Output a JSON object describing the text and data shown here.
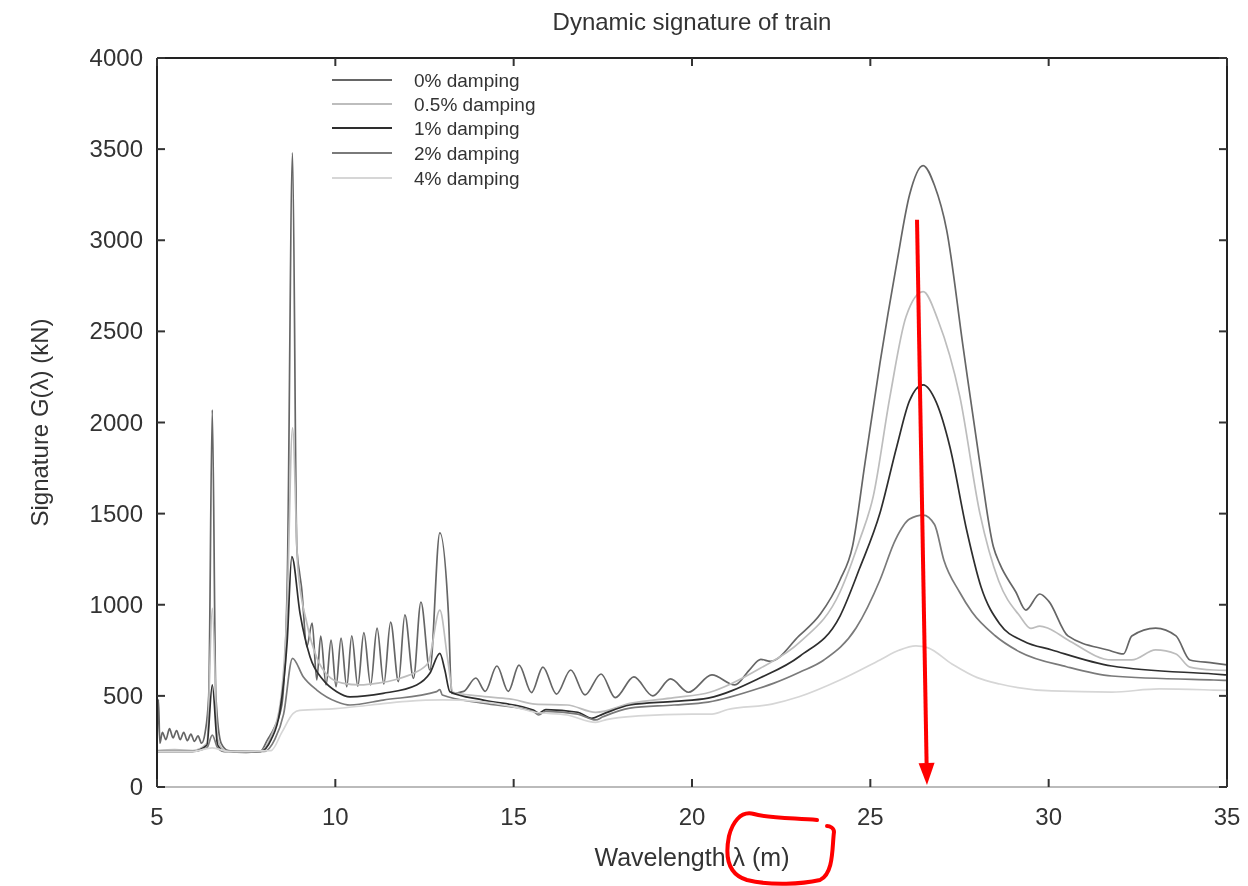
{
  "chart_data": {
    "type": "line",
    "title": "Dynamic signature of train",
    "xlabel": "Wavelength λ (m)",
    "ylabel": "Signature G(λ) (kN)",
    "xlim": [
      5,
      35
    ],
    "xticks": [
      5,
      10,
      15,
      20,
      25,
      30,
      35
    ],
    "ylim": [
      0,
      4000
    ],
    "yticks": [
      0,
      500,
      1000,
      1500,
      2000,
      2500,
      3000,
      3500,
      4000
    ],
    "legend": "top left",
    "series": [
      {
        "name": "0% damping",
        "color": "#666666",
        "x": [
          5.0,
          5.04,
          5.08,
          5.15,
          5.25,
          5.35,
          5.45,
          5.55,
          5.65,
          5.75,
          5.85,
          5.95,
          6.05,
          6.15,
          6.25,
          6.35,
          6.45,
          6.55,
          6.65,
          6.8,
          7.0,
          7.5,
          7.9,
          8.1,
          8.3,
          8.5,
          8.65,
          8.8,
          8.92,
          9.0,
          9.05,
          9.2,
          9.35,
          9.48,
          9.59,
          9.74,
          9.88,
          10.02,
          10.16,
          10.32,
          10.46,
          10.63,
          10.8,
          10.99,
          11.17,
          11.36,
          11.55,
          11.77,
          11.95,
          12.19,
          12.4,
          12.65,
          12.93,
          13.17,
          13.26,
          13.6,
          13.94,
          14.2,
          14.53,
          14.85,
          15.15,
          15.5,
          15.82,
          16.2,
          16.6,
          17.0,
          17.45,
          17.85,
          18.37,
          18.9,
          19.4,
          19.9,
          20.56,
          21.2,
          21.6,
          21.93,
          22.2,
          23.0,
          23.6,
          24.15,
          24.5,
          24.85,
          25.27,
          25.74,
          26.1,
          26.48,
          26.8,
          27.14,
          27.6,
          28.07,
          28.45,
          28.63,
          29.08,
          29.36,
          29.75,
          30.0,
          30.54,
          31.66,
          32.1,
          32.33,
          33.0,
          33.57,
          33.96,
          34.63,
          35.0
        ],
        "values": [
          220,
          480,
          240,
          300,
          260,
          320,
          270,
          310,
          260,
          300,
          255,
          290,
          250,
          280,
          240,
          300,
          500,
          2070,
          500,
          240,
          200,
          190,
          195,
          260,
          330,
          450,
          1100,
          3480,
          1320,
          1170,
          1100,
          770,
          900,
          587,
          828,
          560,
          806,
          550,
          817,
          550,
          830,
          554,
          847,
          560,
          872,
          565,
          905,
          578,
          944,
          596,
          1015,
          642,
          1394,
          953,
          514,
          525,
          598,
          525,
          664,
          525,
          669,
          518,
          658,
          510,
          642,
          505,
          620,
          490,
          604,
          500,
          593,
          520,
          615,
          560,
          640,
          700,
          690,
          829,
          949,
          1136,
          1320,
          1777,
          2326,
          2873,
          3250,
          3410,
          3300,
          3056,
          2416,
          1777,
          1318,
          1224,
          1070,
          971,
          1059,
          1020,
          829,
          752,
          730,
          829,
          872,
          829,
          697,
          680,
          670
        ]
      },
      {
        "name": "0.5% damping",
        "color": "#bdbdbd",
        "x": [
          5.0,
          5.5,
          6.0,
          6.4,
          6.55,
          6.7,
          6.9,
          7.5,
          7.9,
          8.2,
          8.45,
          8.65,
          8.8,
          8.95,
          9.2,
          9.5,
          9.8,
          10.2,
          10.7,
          11.2,
          11.7,
          12.2,
          12.6,
          12.93,
          13.15,
          13.3,
          14.0,
          15.0,
          15.6,
          16.5,
          17.3,
          18.3,
          19.5,
          20.5,
          21.9,
          23.03,
          24.15,
          24.7,
          25.08,
          25.55,
          26.0,
          26.48,
          26.9,
          27.51,
          28.07,
          28.6,
          29.19,
          29.5,
          29.75,
          30.0,
          30.54,
          31.77,
          32.33,
          33.0,
          33.57,
          33.96,
          34.63,
          35.0
        ],
        "values": [
          200,
          205,
          200,
          240,
          980,
          260,
          200,
          190,
          195,
          280,
          450,
          1000,
          1970,
          1200,
          900,
          700,
          610,
          570,
          560,
          570,
          590,
          625,
          680,
          970,
          700,
          520,
          500,
          480,
          455,
          450,
          410,
          460,
          490,
          520,
          650,
          796,
          1070,
          1355,
          1593,
          2142,
          2580,
          2718,
          2560,
          2142,
          1503,
          1130,
          938,
          870,
          883,
          870,
          807,
          697,
          697,
          752,
          730,
          658,
          642,
          640
        ]
      },
      {
        "name": "1% damping",
        "color": "#2e2e2e",
        "x": [
          5.0,
          6.0,
          6.4,
          6.55,
          6.7,
          6.9,
          7.9,
          8.2,
          8.45,
          8.65,
          8.78,
          9.01,
          9.29,
          9.66,
          10.04,
          10.41,
          11.34,
          12.28,
          12.65,
          12.93,
          13.07,
          13.21,
          14.15,
          15.55,
          15.7,
          15.9,
          16.8,
          17.19,
          17.5,
          18.26,
          19.5,
          20.45,
          21.9,
          23.03,
          24.15,
          24.7,
          25.27,
          25.74,
          26.1,
          26.48,
          26.85,
          27.23,
          27.7,
          28.1,
          28.63,
          29.3,
          30.09,
          31.77,
          34.63,
          35.0
        ],
        "values": [
          195,
          195,
          230,
          560,
          230,
          195,
          195,
          260,
          420,
          800,
          1264,
          953,
          715,
          587,
          523,
          495,
          514,
          560,
          624,
          733,
          642,
          523,
          477,
          422,
          405,
          425,
          410,
          377,
          400,
          450,
          470,
          488,
          598,
          719,
          938,
          1200,
          1503,
          1867,
          2120,
          2206,
          2110,
          1867,
          1410,
          1100,
          894,
          800,
          752,
          664,
          620,
          615
        ]
      },
      {
        "name": "2% damping",
        "color": "#7a7a7a",
        "x": [
          5.0,
          6.0,
          6.4,
          6.55,
          6.7,
          6.9,
          8.0,
          8.3,
          8.55,
          8.8,
          9.1,
          9.48,
          10.04,
          10.41,
          11.34,
          12.84,
          12.93,
          13.0,
          14.15,
          15.55,
          15.7,
          15.9,
          16.8,
          17.3,
          17.5,
          18.26,
          19.5,
          20.45,
          21.9,
          22.3,
          23.03,
          23.7,
          24.6,
          25.27,
          25.7,
          26.1,
          26.48,
          26.8,
          27.06,
          27.5,
          27.85,
          28.5,
          29.19,
          30.5,
          31.77,
          34.63,
          35.0
        ],
        "values": [
          195,
          195,
          215,
          285,
          215,
          195,
          195,
          260,
          400,
          706,
          605,
          532,
          468,
          450,
          477,
          523,
          535,
          505,
          460,
          415,
          395,
          415,
          400,
          368,
          385,
          433,
          450,
          466,
          543,
          570,
          631,
          697,
          872,
          1136,
          1355,
          1470,
          1492,
          1440,
          1246,
          1070,
          960,
          830,
          741,
          660,
          609,
          587,
          585
        ]
      },
      {
        "name": "4% damping",
        "color": "#d6d6d6",
        "x": [
          5.0,
          6.0,
          6.55,
          7.0,
          8.2,
          8.5,
          8.82,
          9.0,
          10.0,
          11.0,
          12.0,
          13.0,
          14.0,
          15.0,
          15.6,
          16.5,
          17.3,
          17.6,
          18.5,
          20.0,
          20.56,
          21.0,
          22.24,
          23.0,
          24.15,
          25.27,
          25.8,
          26.28,
          26.6,
          27.29,
          28.0,
          28.63,
          30.09,
          31.77,
          33.1,
          34.63,
          35.0
        ],
        "values": [
          195,
          195,
          215,
          195,
          200,
          300,
          404,
          420,
          430,
          450,
          470,
          478,
          470,
          440,
          410,
          395,
          355,
          370,
          390,
          400,
          400,
          425,
          455,
          495,
          587,
          697,
          750,
          774,
          765,
          675,
          600,
          565,
          527,
          521,
          538,
          532,
          530
        ]
      }
    ]
  }
}
